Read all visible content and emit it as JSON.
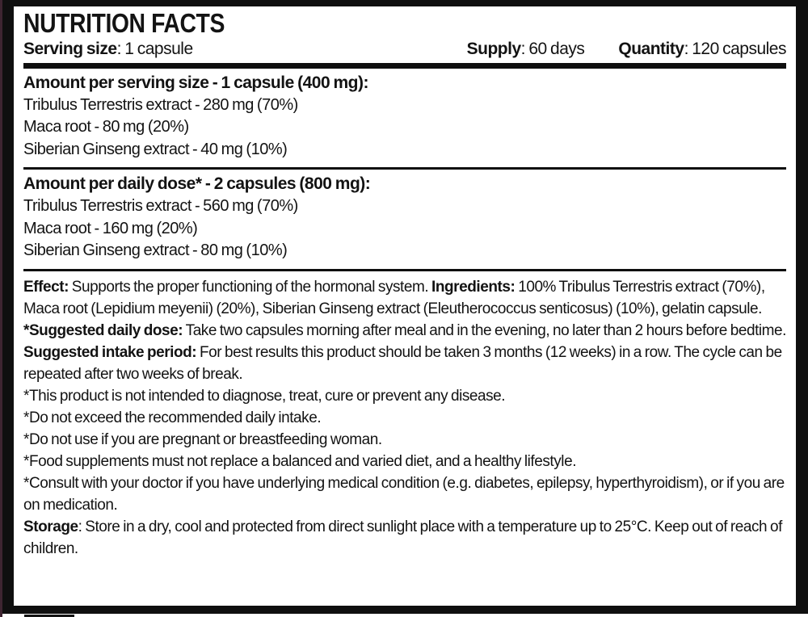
{
  "label": {
    "title": "NUTRITION FACTS",
    "serving_size": {
      "label": "Serving size",
      "value": ": 1 capsule"
    },
    "supply": {
      "label": "Supply",
      "value": ": 60 days"
    },
    "quantity": {
      "label": "Quantity",
      "value": ": 120 capsules"
    },
    "sections": [
      {
        "heading": "Amount per serving size - 1 capsule (400 mg):",
        "rows": [
          "Tribulus Terrestris extract - 280 mg (70%)",
          "Maca root - 80 mg (20%)",
          "Siberian Ginseng extract - 40 mg (10%)"
        ]
      },
      {
        "heading": "Amount per daily dose* - 2 capsules (800 mg):",
        "rows": [
          "Tribulus Terrestris extract - 560 mg (70%)",
          "Maca root - 160 mg (20%)",
          "Siberian Ginseng extract - 80 mg (10%)"
        ]
      }
    ],
    "info": [
      {
        "segments": [
          "Effect:",
          " Supports the proper functioning of the hormonal system. ",
          "Ingredients:",
          " 100% Tribulus Terrestris extract (70%), Maca root (Lepidium meyenii) (20%), Siberian Ginseng extract (Eleutherococcus senticosus) (10%), gelatin capsule."
        ]
      },
      {
        "segments": [
          "*Suggested daily dose:",
          " Take two capsules morning after meal and in the evening, no later than 2 hours before bedtime."
        ]
      },
      {
        "segments": [
          "Suggested intake period:",
          " For best results this product should be taken 3 months (12 weeks) in a row. The cycle can be repeated after two weeks of break."
        ]
      },
      {
        "segments": [
          "*This product is not intended to diagnose, treat, cure or prevent any disease."
        ]
      },
      {
        "segments": [
          "*Do not exceed the recommended daily intake."
        ]
      },
      {
        "segments": [
          "*Do not use if you are pregnant or breastfeeding woman."
        ]
      },
      {
        "segments": [
          "*Food supplements must not replace a balanced and varied diet, and a healthy lifestyle."
        ]
      },
      {
        "segments": [
          "*Consult with your doctor if you have underlying medical condition (e.g. diabetes, epilepsy, hyperthyroidism), or if you are on medication."
        ]
      },
      {
        "segments": [
          "Storage",
          ": Store in a dry, cool and protected from direct sunlight place with a temperature up to 25°C. Keep out of reach of children."
        ]
      }
    ],
    "colors": {
      "text": "#131313",
      "frame": "#0f0f0f",
      "background": "#ffffff",
      "edge_strip": "#3e2531"
    }
  }
}
